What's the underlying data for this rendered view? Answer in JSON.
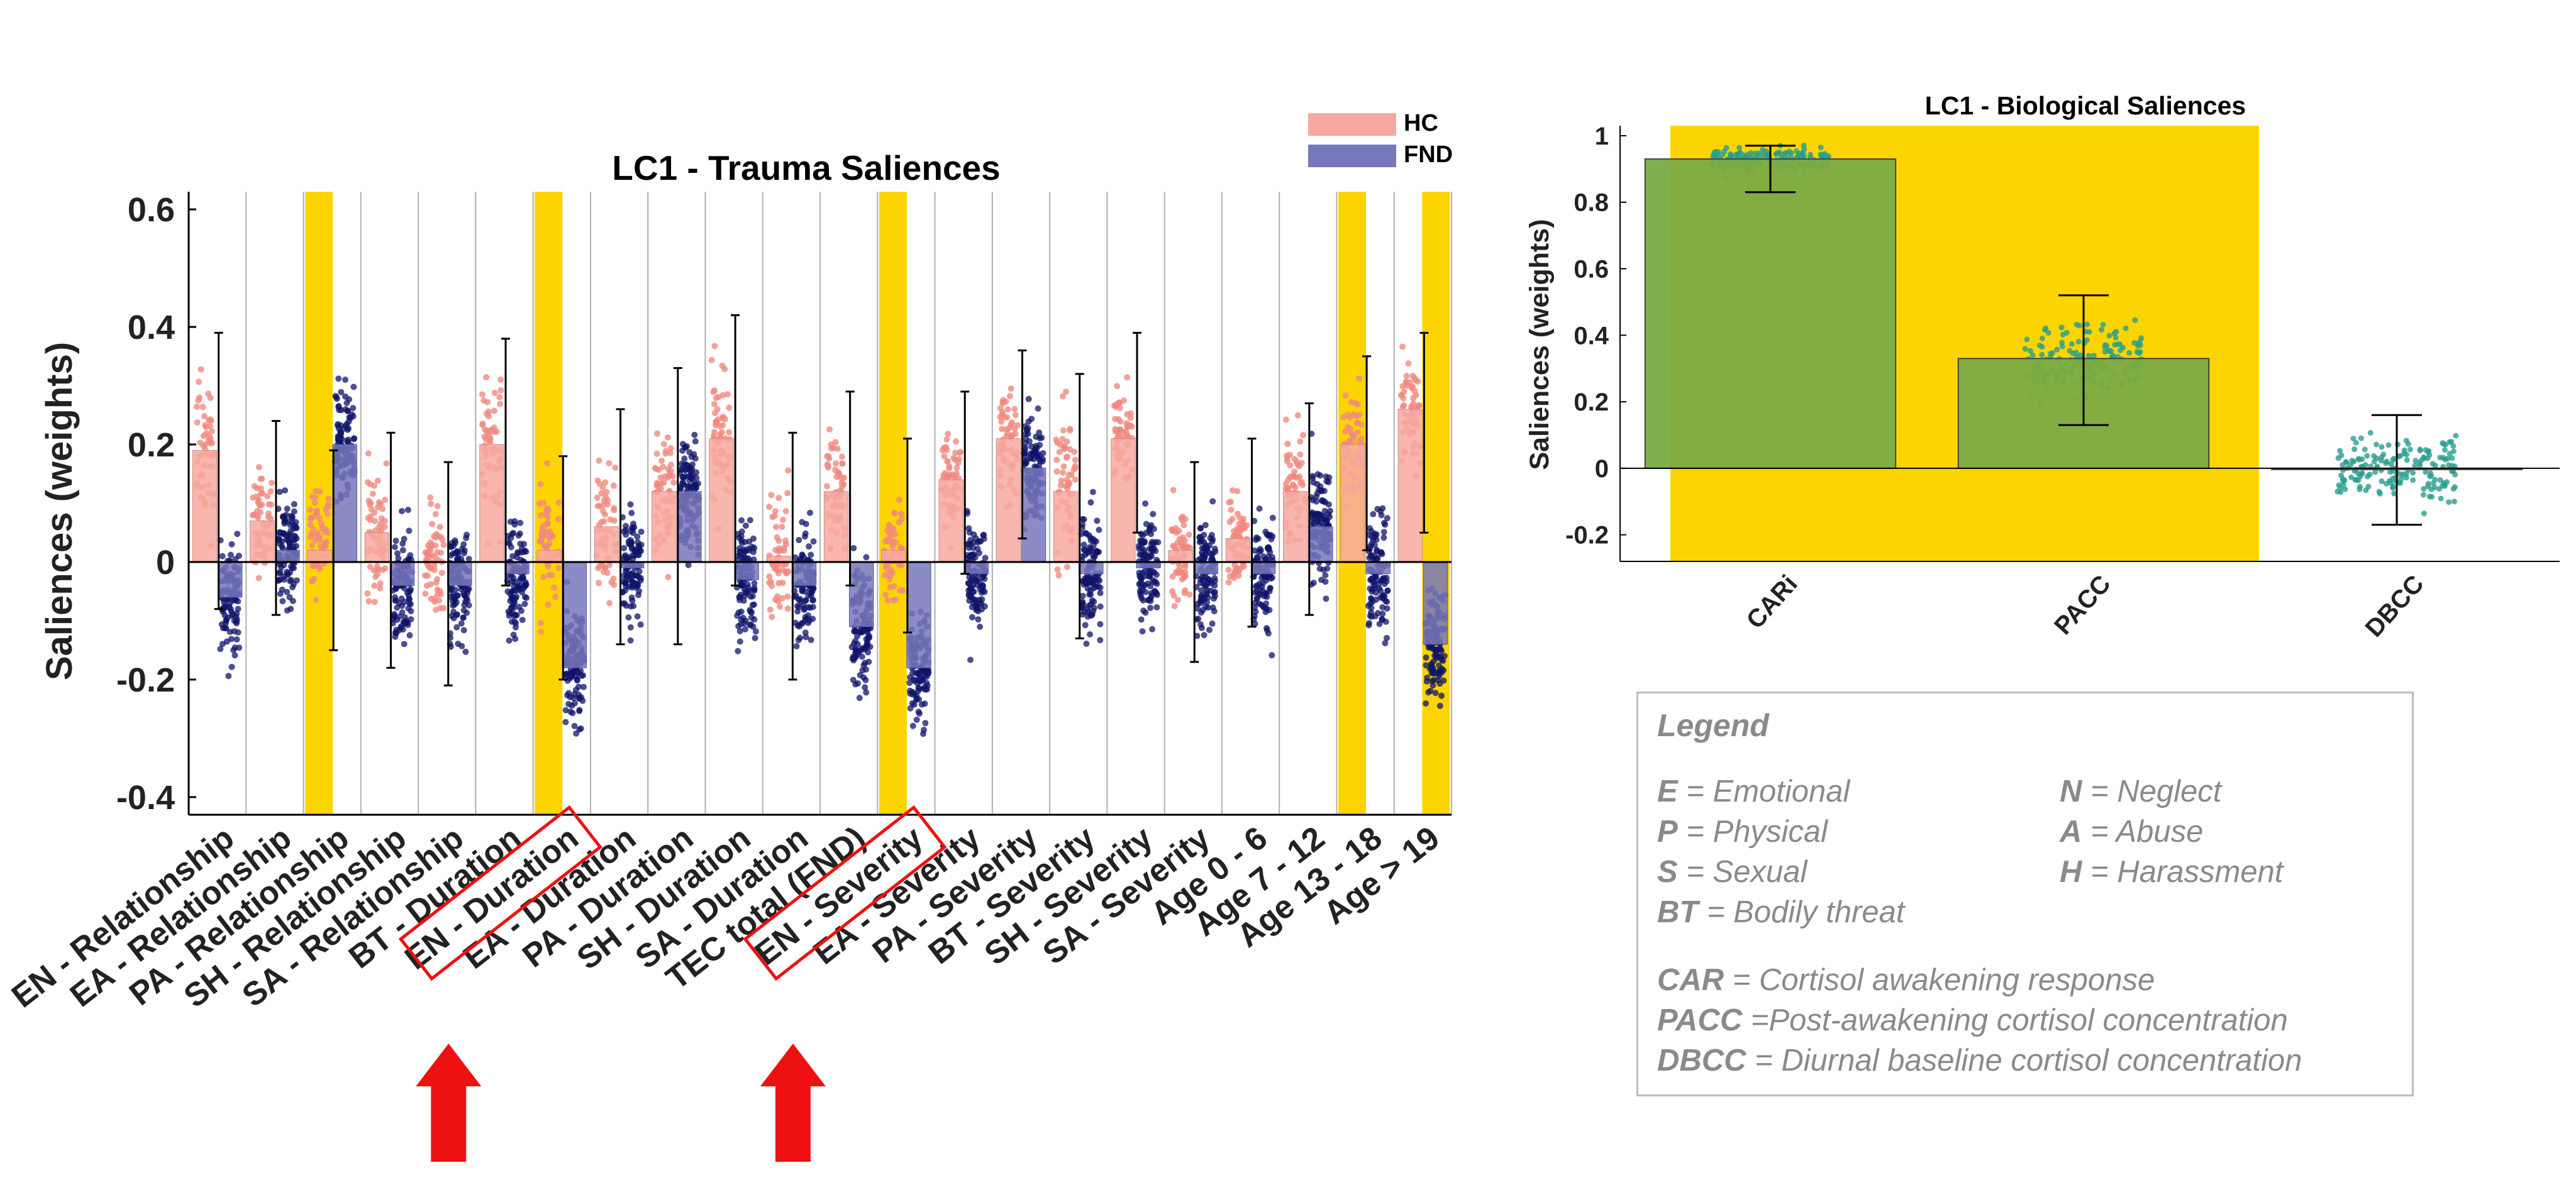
{
  "chart_data": [
    {
      "type": "bar",
      "title": "LC1 - Trauma Saliences",
      "ylabel": "Saliences (weights)",
      "ylim": [
        -0.43,
        0.63
      ],
      "yticks": [
        "0.6",
        "0.4",
        "0.2",
        "0",
        "-0.2",
        "-0.4"
      ],
      "grid": "vertical",
      "legend_position": "top-right",
      "categories": [
        "EN - Relationship",
        "EA - Relationship",
        "PA - Relationship",
        "SH - Relationship",
        "SA - Relationship",
        "BT - Duration",
        "EN - Duration",
        "EA - Duration",
        "PA - Duration",
        "SH - Duration",
        "SA - Duration",
        "TEC total (FND)",
        "EN - Severity",
        "EA - Severity",
        "PA - Severity",
        "BT - Severity",
        "SH - Severity",
        "SA - Severity",
        "Age 0 - 6",
        "Age 7 - 12",
        "Age 13 - 18",
        "Age > 19"
      ],
      "highlighted_categories": [
        "PA - Relationship",
        "EN - Duration",
        "EN - Severity",
        "Age 13 - 18",
        "Age > 19"
      ],
      "marked_categories": [
        "EN - Duration",
        "EN - Severity"
      ],
      "series": [
        {
          "name": "HC",
          "color": "#f7a9a0",
          "values": [
            0.19,
            0.07,
            0.02,
            0.05,
            0.0,
            0.2,
            0.02,
            0.06,
            0.12,
            0.21,
            0.01,
            0.12,
            0.02,
            0.14,
            0.21,
            0.12,
            0.21,
            0.02,
            0.04,
            0.12,
            0.2,
            0.26
          ],
          "err_low": [
            -0.08,
            -0.09,
            -0.15,
            -0.18,
            -0.21,
            -0.04,
            -0.2,
            -0.14,
            -0.14,
            -0.04,
            -0.2,
            -0.04,
            -0.12,
            -0.02,
            0.04,
            -0.13,
            0.05,
            -0.17,
            -0.11,
            -0.09,
            0.02,
            0.05
          ],
          "err_high": [
            0.39,
            0.24,
            0.19,
            0.22,
            0.17,
            0.38,
            0.18,
            0.26,
            0.33,
            0.42,
            0.22,
            0.29,
            0.21,
            0.29,
            0.36,
            0.32,
            0.39,
            0.17,
            0.21,
            0.27,
            0.35,
            0.39
          ]
        },
        {
          "name": "FND",
          "color": "#7777bb",
          "values": [
            -0.06,
            0.02,
            0.2,
            -0.04,
            -0.04,
            -0.02,
            -0.18,
            -0.01,
            0.12,
            -0.03,
            -0.04,
            -0.11,
            -0.18,
            -0.02,
            0.16,
            -0.02,
            -0.01,
            -0.02,
            -0.02,
            0.06,
            -0.02,
            -0.14
          ]
        }
      ]
    },
    {
      "type": "bar",
      "title": "LC1 - Biological Saliences",
      "ylabel": "Saliences (weights)",
      "ylim": [
        -0.28,
        1.03
      ],
      "yticks": [
        "1",
        "0.8",
        "0.6",
        "0.4",
        "0.2",
        "0",
        "-0.2"
      ],
      "categories": [
        "CARi",
        "PACC",
        "DBCC"
      ],
      "highlighted_categories": [
        "CARi",
        "PACC"
      ],
      "values": [
        0.93,
        0.33,
        0.0
      ],
      "err_low": [
        0.83,
        0.13,
        -0.17
      ],
      "err_high": [
        0.97,
        0.52,
        0.16
      ],
      "bar_color": "#7aab45",
      "point_color": "#2a9d8f"
    }
  ],
  "legend_panel": {
    "title": "Legend",
    "items": [
      {
        "abbr": "E",
        "text": " = Emotional"
      },
      {
        "abbr": "N",
        "text": " = Neglect"
      },
      {
        "abbr": "P",
        "text": " = Physical"
      },
      {
        "abbr": "A",
        "text": " = Abuse"
      },
      {
        "abbr": "S",
        "text": " = Sexual"
      },
      {
        "abbr": "H",
        "text": " = Harassment"
      },
      {
        "abbr": "BT",
        "text": " = Bodily threat"
      },
      {
        "abbr": "CAR",
        "text": " = Cortisol awakening response"
      },
      {
        "abbr": "PACC",
        "text": " =Post-awakening cortisol concentration"
      },
      {
        "abbr": "DBCC",
        "text": " = Diurnal baseline cortisol concentration"
      }
    ]
  },
  "colors": {
    "highlight": "#fcd500",
    "marker": "#ee1111",
    "hc_point": "#f08a80",
    "fnd_point": "#10146a"
  }
}
